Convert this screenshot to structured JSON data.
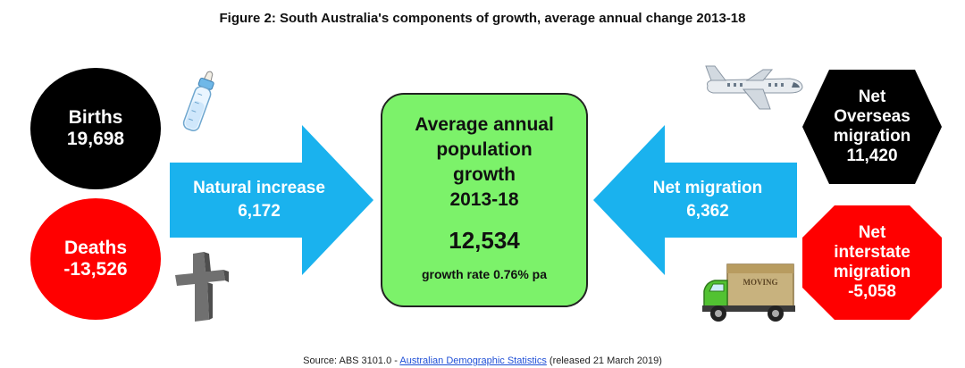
{
  "title": "Figure 2: South Australia's components of growth, average annual change 2013-18",
  "births": {
    "label": "Births",
    "value": "19,698"
  },
  "deaths": {
    "label": "Deaths",
    "value": "-13,526"
  },
  "natural_increase": {
    "label": "Natural increase",
    "value": "6,172"
  },
  "center": {
    "line1": "Average annual",
    "line2": "population",
    "line3": "growth",
    "line4": "2013-18",
    "value": "12,534",
    "rate": "growth rate 0.76% pa"
  },
  "net_migration": {
    "label": "Net migration",
    "value": "6,362"
  },
  "overseas": {
    "line1": "Net",
    "line2": "Overseas",
    "line3": "migration",
    "value": "11,420"
  },
  "interstate": {
    "line1": "Net",
    "line2": "interstate",
    "line3": "migration",
    "value": "-5,058"
  },
  "truck_sign": "MOVING",
  "source": {
    "prefix": "Source: ABS 3101.0 - ",
    "link": "Australian Demographic Statistics",
    "suffix": " (released 21 March 2019)"
  },
  "colors": {
    "arrow": "#1ab2ee",
    "center_box": "#7cf26a",
    "births": "#000000",
    "deaths": "#ff0000",
    "overseas": "#000000",
    "interstate": "#ff0000"
  },
  "icons": [
    "baby-bottle-icon",
    "gravestone-cross-icon",
    "airplane-icon",
    "moving-truck-icon"
  ]
}
